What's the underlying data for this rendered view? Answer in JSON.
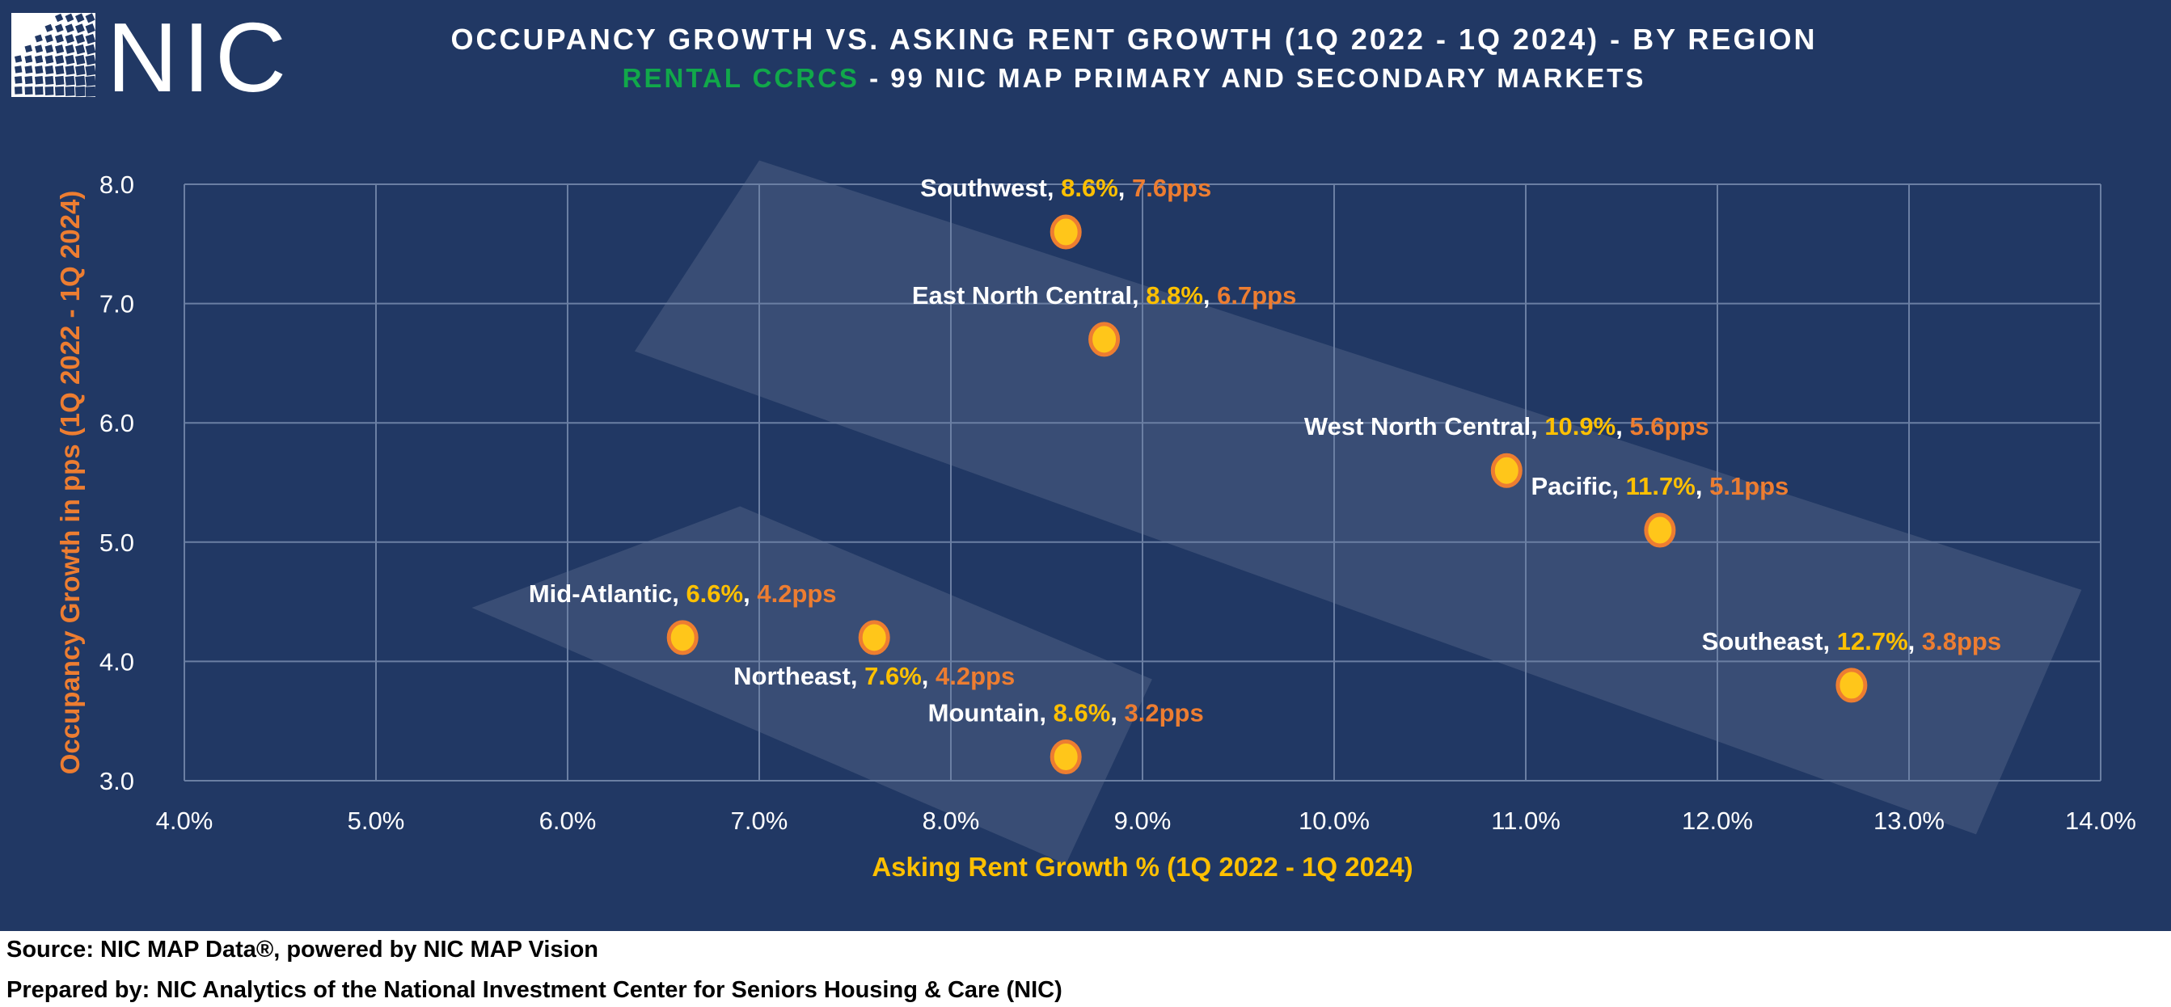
{
  "header": {
    "logo_text": "NIC",
    "title_line1": "OCCUPANCY GROWTH VS. ASKING RENT GROWTH (1Q 2022 - 1Q 2024) - BY REGION",
    "title_line2_accent": "RENTAL CCRCS",
    "title_line2_rest": " - 99 NIC MAP PRIMARY AND SECONDARY MARKETS"
  },
  "footer": {
    "source": "Source: NIC MAP Data®, powered by NIC MAP Vision",
    "prepared_by": "Prepared by: NIC Analytics of the National Investment Center for Seniors Housing & Care (NIC)"
  },
  "colors": {
    "background": "#213864",
    "accent_green": "#11a84a",
    "x_value": "#ffc000",
    "y_value": "#ed7d31",
    "marker_fill": "#ffc61a",
    "marker_stroke": "#ed7d31",
    "grid": "#6b7fa3",
    "band": "#ffffff"
  },
  "chart_data": {
    "type": "scatter",
    "title": "OCCUPANCY GROWTH VS. ASKING RENT GROWTH (1Q 2022 - 1Q 2024) - BY REGION",
    "subtitle": "RENTAL CCRCS - 99 NIC MAP PRIMARY AND SECONDARY MARKETS",
    "xlabel": "Asking Rent Growth % (1Q 2022 - 1Q 2024)",
    "ylabel": "Occupancy Growth in pps (1Q 2022 - 1Q 2024)",
    "xlim": [
      4.0,
      14.0
    ],
    "ylim": [
      3.0,
      8.0
    ],
    "x_ticks": [
      "4.0%",
      "5.0%",
      "6.0%",
      "7.0%",
      "8.0%",
      "9.0%",
      "10.0%",
      "11.0%",
      "12.0%",
      "13.0%",
      "14.0%"
    ],
    "y_ticks": [
      "3.0",
      "4.0",
      "5.0",
      "6.0",
      "7.0",
      "8.0"
    ],
    "grid": true,
    "legend": "none",
    "points": [
      {
        "name": "Southwest",
        "x": 8.6,
        "y": 7.6,
        "x_label": "8.6%",
        "y_label": "7.6pps",
        "label_pos": "above"
      },
      {
        "name": "East North Central",
        "x": 8.8,
        "y": 6.7,
        "x_label": "8.8%",
        "y_label": "6.7pps",
        "label_pos": "above"
      },
      {
        "name": "West North Central",
        "x": 10.9,
        "y": 5.6,
        "x_label": "10.9%",
        "y_label": "5.6pps",
        "label_pos": "above"
      },
      {
        "name": "Pacific",
        "x": 11.7,
        "y": 5.1,
        "x_label": "11.7%",
        "y_label": "5.1pps",
        "label_pos": "above"
      },
      {
        "name": "Southeast",
        "x": 12.7,
        "y": 3.8,
        "x_label": "12.7%",
        "y_label": "3.8pps",
        "label_pos": "above"
      },
      {
        "name": "Mid-Atlantic",
        "x": 6.6,
        "y": 4.2,
        "x_label": "6.6%",
        "y_label": "4.2pps",
        "label_pos": "above"
      },
      {
        "name": "Northeast",
        "x": 7.6,
        "y": 4.2,
        "x_label": "7.6%",
        "y_label": "4.2pps",
        "label_pos": "below"
      },
      {
        "name": "Mountain",
        "x": 8.6,
        "y": 3.2,
        "x_label": "8.6%",
        "y_label": "3.2pps",
        "label_pos": "above"
      }
    ],
    "highlight_groups": [
      {
        "name": "upper-cluster",
        "members": [
          "Southwest",
          "East North Central",
          "West North Central",
          "Pacific",
          "Southeast"
        ]
      },
      {
        "name": "lower-cluster",
        "members": [
          "Mid-Atlantic",
          "Northeast",
          "Mountain"
        ]
      }
    ]
  }
}
